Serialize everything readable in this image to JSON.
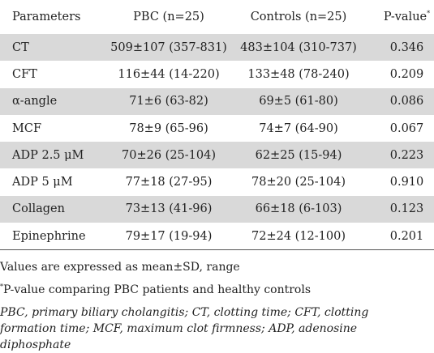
{
  "table": {
    "headers": {
      "parameters": "Parameters",
      "pbc": "PBC (n=25)",
      "controls": "Controls (n=25)",
      "pvalue": "P-value",
      "pvalue_mark": "*"
    },
    "rows": [
      {
        "parameter": "CT",
        "pbc": "509±107 (357-831)",
        "controls": "483±104 (310-737)",
        "p": "0.346"
      },
      {
        "parameter": "CFT",
        "pbc": "116±44 (14-220)",
        "controls": "133±48  (78-240)",
        "p": "0.209"
      },
      {
        "parameter": "α-angle",
        "pbc": "71±6 (63-82)",
        "controls": "69±5 (61-80)",
        "p": "0.086"
      },
      {
        "parameter": "MCF",
        "pbc": "78±9 (65-96)",
        "controls": "74±7  (64-90)",
        "p": "0.067"
      },
      {
        "parameter": "ADP 2.5 μM",
        "pbc": "70±26 (25-104)",
        "controls": "62±25 (15-94)",
        "p": "0.223"
      },
      {
        "parameter": "ADP 5 μM",
        "pbc": "77±18  (27-95)",
        "controls": "78±20 (25-104)",
        "p": "0.910"
      },
      {
        "parameter": "Collagen",
        "pbc": "73±13 (41-96)",
        "controls": "66±18 (6-103)",
        "p": "0.123"
      },
      {
        "parameter": "Epinephrine",
        "pbc": "79±17 (19-94)",
        "controls": "72±24  (12-100)",
        "p": "0.201"
      }
    ]
  },
  "notes": {
    "values_note": "Values are expressed as mean±SD, range",
    "pvalue_mark": "*",
    "pvalue_note": "P-value comparing PBC patients and healthy controls",
    "abbreviations": "PBC, primary biliary cholangitis; CT, clotting time; CFT, clotting formation time; MCF, maximum clot firmness; ADP, adenosine diphosphate"
  }
}
